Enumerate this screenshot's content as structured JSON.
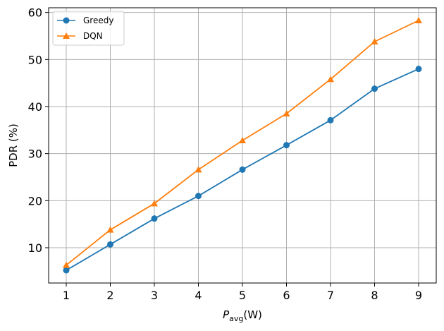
{
  "chart_data": {
    "type": "line",
    "x": [
      1,
      2,
      3,
      4,
      5,
      6,
      7,
      8,
      9
    ],
    "series": [
      {
        "name": "Greedy",
        "values": [
          5.2,
          10.7,
          16.2,
          21.0,
          26.6,
          31.8,
          37.1,
          43.8,
          48.0
        ],
        "color": "#1f77b4",
        "marker": "circle"
      },
      {
        "name": "DQN",
        "values": [
          6.3,
          13.8,
          19.4,
          26.6,
          32.8,
          38.5,
          45.8,
          53.8,
          58.3
        ],
        "color": "#ff7f0e",
        "marker": "triangle"
      }
    ],
    "xlabel_main": "P",
    "xlabel_sub": "avg",
    "xlabel_unit": "(W)",
    "ylabel": "PDR (%)",
    "xlim": [
      0.6,
      9.4
    ],
    "ylim": [
      2.5,
      61.0
    ],
    "xticks": [
      1,
      2,
      3,
      4,
      5,
      6,
      7,
      8,
      9
    ],
    "yticks": [
      10,
      20,
      30,
      40,
      50,
      60
    ],
    "grid": true,
    "legend_position": "top-left"
  }
}
